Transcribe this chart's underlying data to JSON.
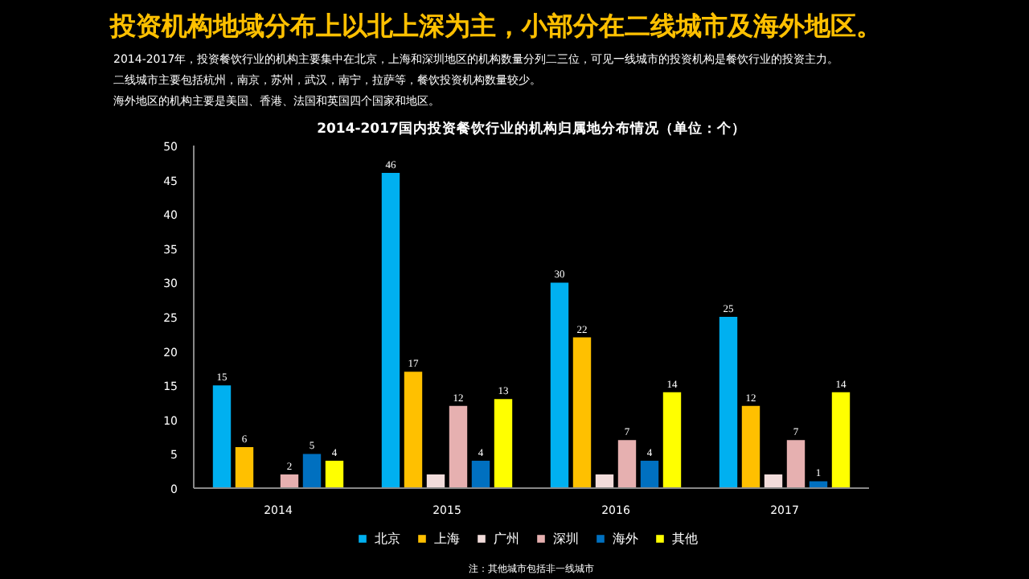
{
  "chart_data": {
    "type": "bar",
    "title": "投资机构地域分布上以北上深为主，小部分在二线城市及海外地区。",
    "subtitle": "2014-2017国内投资餐饮行业的机构归属地分布情况（单位：个）",
    "annotations": [
      "2014-2017年，投资餐饮行业的机构主要集中在北京，上海和深圳地区的机构数量分列二三位，可见一线城市的投资机构是餐饮行业的投资主力。",
      "二线城市主要包括杭州，南京，苏州，武汉，南宁，拉萨等，餐饮投资机构数量较少。",
      "海外地区的机构主要是美国、香港、法国和英国四个国家和地区。",
      "注：其他城市包括非一线城市"
    ],
    "categories": [
      "2014",
      "2015",
      "2016",
      "2017"
    ],
    "series": [
      {
        "name": "北京",
        "color": "#00b0f0",
        "values": [
          15,
          46,
          30,
          25
        ],
        "value_labels": [
          "15",
          "46",
          "30",
          "25"
        ]
      },
      {
        "name": "上海",
        "color": "#ffc000",
        "values": [
          6,
          17,
          22,
          12
        ],
        "value_labels": [
          "6",
          "17",
          "22",
          "12"
        ]
      },
      {
        "name": "广州",
        "color": "#f2dcdb",
        "values": [
          0,
          2,
          2,
          2
        ],
        "value_labels": [
          null,
          null,
          null,
          null
        ]
      },
      {
        "name": "深圳",
        "color": "#e6b0b0",
        "values": [
          2,
          12,
          7,
          7
        ],
        "value_labels": [
          "2",
          "12",
          "7",
          "7"
        ]
      },
      {
        "name": "海外",
        "color": "#0070c0",
        "values": [
          5,
          4,
          4,
          1
        ],
        "value_labels": [
          "5",
          "4",
          "4",
          "1"
        ]
      },
      {
        "name": "其他",
        "color": "#ffff00",
        "values": [
          4,
          13,
          14,
          14
        ],
        "value_labels": [
          "4",
          "13",
          "14",
          "14"
        ]
      }
    ],
    "ylim": [
      0,
      50
    ],
    "yticks": [
      0,
      5,
      10,
      15,
      20,
      25,
      30,
      35,
      40,
      45,
      50
    ],
    "grid": false,
    "legend": "bottom"
  }
}
